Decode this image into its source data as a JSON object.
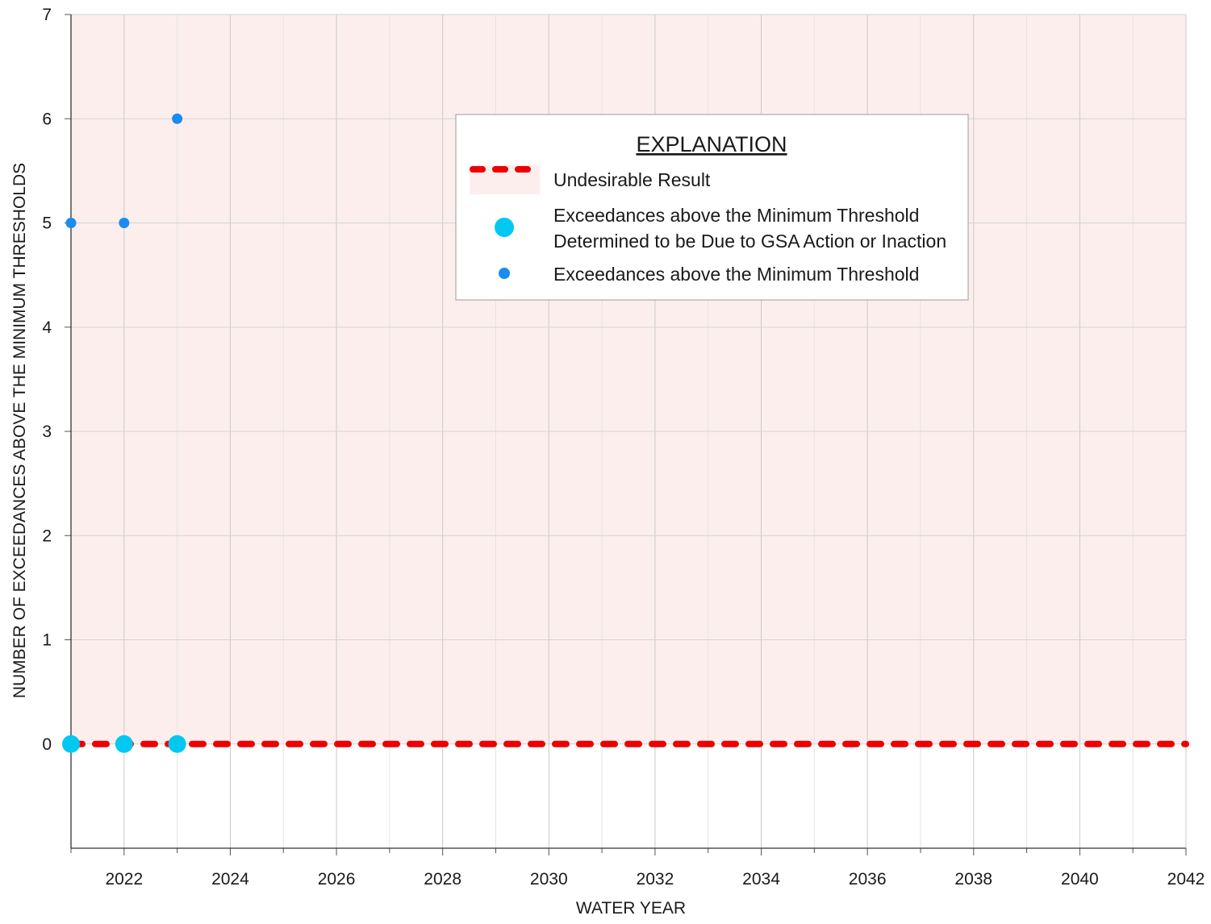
{
  "chart_data": {
    "type": "scatter",
    "title": "",
    "xlabel": "WATER YEAR",
    "ylabel": "NUMBER OF EXCEEDANCES ABOVE THE MINIMUM THRESHOLDS",
    "xlim": [
      2021,
      2042
    ],
    "ylim": [
      -1,
      7
    ],
    "x_ticks": [
      2022,
      2024,
      2026,
      2028,
      2030,
      2032,
      2034,
      2036,
      2038,
      2040,
      2042
    ],
    "y_ticks": [
      0,
      1,
      2,
      3,
      4,
      5,
      6,
      7
    ],
    "grid": true,
    "legend": {
      "title": "EXPLANATION",
      "position": "top-center"
    },
    "undesirable_region": {
      "ymin": 0,
      "ymax": 7,
      "color": "#fdeeee"
    },
    "series": [
      {
        "name": "Undesirable Result",
        "kind": "dashed-line",
        "color": "#ee0000",
        "x": [
          2021,
          2042
        ],
        "y": [
          0,
          0
        ]
      },
      {
        "name": "Exceedances above the Minimum Threshold Determined to be Due to GSA Action or Inaction",
        "legend_lines": [
          "Exceedances above the Minimum Threshold",
          "Determined to be Due to GSA Action or Inaction"
        ],
        "kind": "large-point",
        "color": "#00c8f0",
        "x": [
          2021,
          2022,
          2023
        ],
        "y": [
          0,
          0,
          0
        ]
      },
      {
        "name": "Exceedances above the Minimum Threshold",
        "legend_lines": [
          "Exceedances above the Minimum Threshold"
        ],
        "kind": "small-point",
        "color": "#1a8cf0",
        "x": [
          2021,
          2022,
          2023
        ],
        "y": [
          5,
          5,
          6
        ]
      }
    ]
  }
}
